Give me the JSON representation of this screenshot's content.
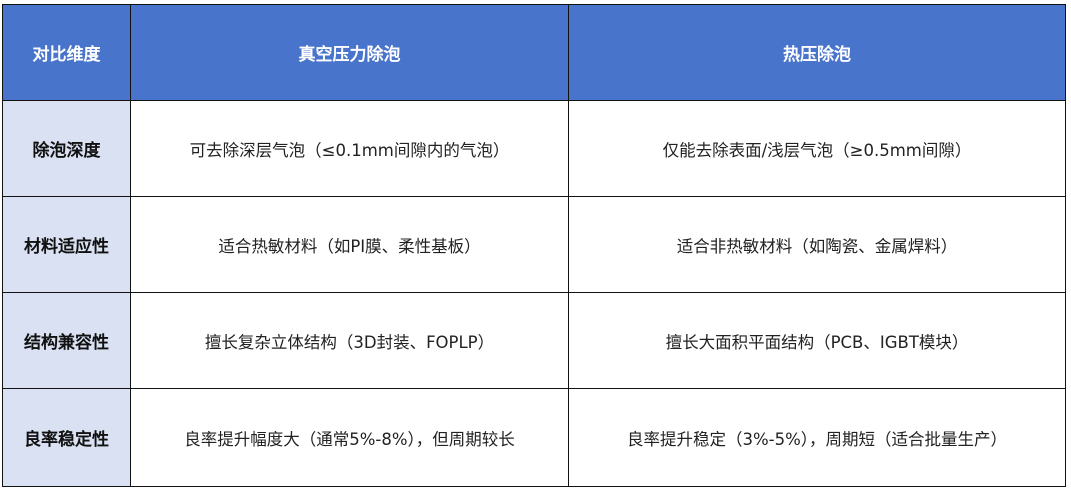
{
  "header": [
    "对比维度",
    "真空压力除泡",
    "热压除泡"
  ],
  "rows": [
    {
      "dimension": "除泡深度",
      "vacuum": "可去除深层气泡（≤0.1mm间隙内的气泡）",
      "hot_press": "仅能去除表面/浅层气泡（≥0.5mm间隙）"
    },
    {
      "dimension": "材料适应性",
      "vacuum": "适合热敏材料（如PI膜、柔性基板）",
      "hot_press": "适合非热敏材料（如陶瓷、金属焊料）"
    },
    {
      "dimension": "结构兼容性",
      "vacuum": "擅长复杂立体结构（3D封装、FOPLP）",
      "hot_press": "擅长大面积平面结构（PCB、IGBT模块）"
    },
    {
      "dimension": "良率稳定性",
      "vacuum": "良率提升幅度大（通常5%-8%），但周期较长",
      "hot_press": "良率提升稳定（3%-5%），周期短（适合批量生产）"
    }
  ],
  "colors": {
    "header_bg": "#4874CB",
    "dimension_bg": "#D9E1F2"
  }
}
